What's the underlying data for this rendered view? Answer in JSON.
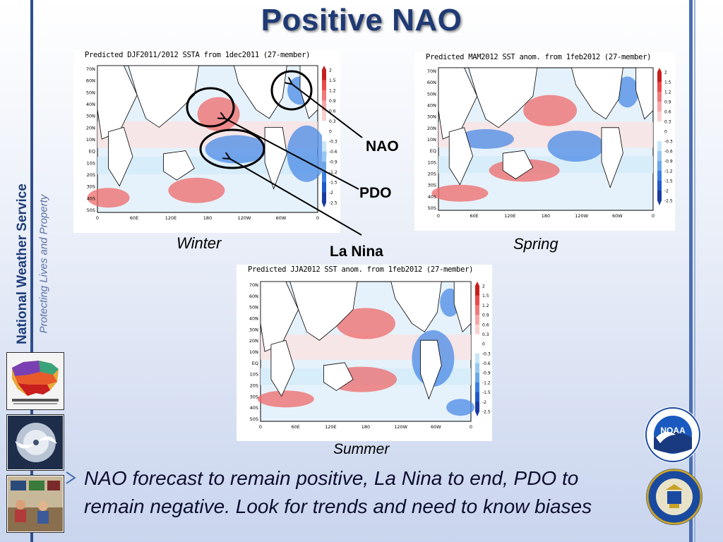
{
  "title": "Positive NAO",
  "sidebar": {
    "org": "National Weather Service",
    "tagline": "Protecting Lives and Property"
  },
  "maps": [
    {
      "id": "winter",
      "header": "Predicted DJF2011/2012 SSTA from 1dec2011 (27-member)",
      "season": "Winter"
    },
    {
      "id": "spring",
      "header": "Predicted MAM2012 SST anom. from 1feb2012 (27-member)",
      "season": "Spring"
    },
    {
      "id": "summer",
      "header": "Predicted JJA2012 SST anom. from 1feb2012 (27-member)",
      "season": "Summer"
    }
  ],
  "lat_labels": [
    "70N",
    "60N",
    "50N",
    "40N",
    "30N",
    "20N",
    "10N",
    "EQ",
    "10S",
    "20S",
    "30S",
    "40S",
    "50S"
  ],
  "lon_labels": [
    "0",
    "60E",
    "120E",
    "180",
    "120W",
    "60W",
    "0"
  ],
  "colorbar_labels": [
    "2",
    "1.5",
    "1.2",
    "0.9",
    "0.6",
    "0.3",
    "0",
    "-0.3",
    "-0.6",
    "-0.9",
    "-1.2",
    "-1.5",
    "-2",
    "-2.5"
  ],
  "annotations": {
    "nao": "NAO",
    "pdo": "PDO",
    "la_nina": "La Nina"
  },
  "bullet": {
    "line1": "NAO forecast to remain positive, La Nina to end, PDO to",
    "line2": "remain negative. Look for trends and need to know biases"
  },
  "logos": {
    "noaa": "NOAA"
  },
  "colors": {
    "title": "#1f3a74",
    "warm": "#e84a4a",
    "cool": "#3b7fe0",
    "rail": "#2f4e8c"
  }
}
